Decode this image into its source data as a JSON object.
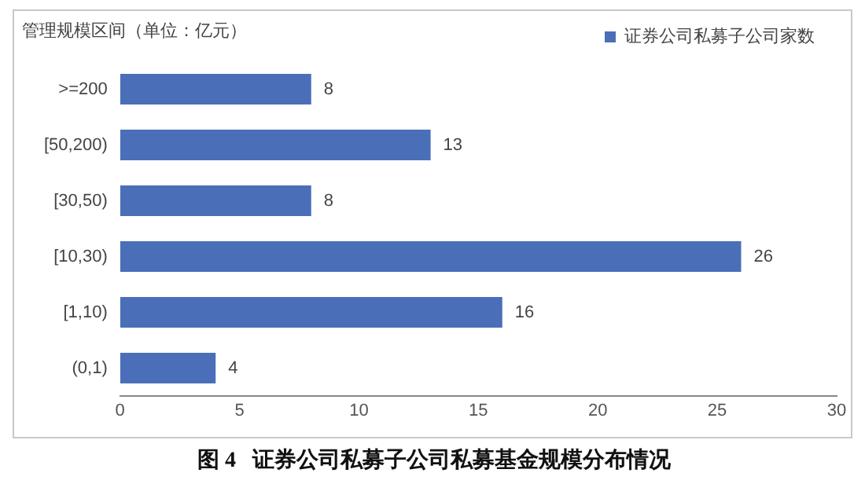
{
  "chart_data": {
    "type": "bar",
    "orientation": "horizontal",
    "title": "图 4   证券公司私募子公司私募基金规模分布情况",
    "ylabel": "管理规模区间（单位：亿元）",
    "categories": [
      ">=200",
      "[50,200)",
      "[30,50)",
      "[10,30)",
      "[1,10)",
      "(0,1)"
    ],
    "series": [
      {
        "name": "证券公司私募子公司家数",
        "color": "#4a6fb8",
        "values": [
          8,
          13,
          8,
          26,
          16,
          4
        ]
      }
    ],
    "xlim": [
      0,
      30
    ],
    "xticks": [
      0,
      5,
      10,
      15,
      20,
      25,
      30
    ],
    "grid": false,
    "legend": "top right",
    "data_labels": true
  }
}
